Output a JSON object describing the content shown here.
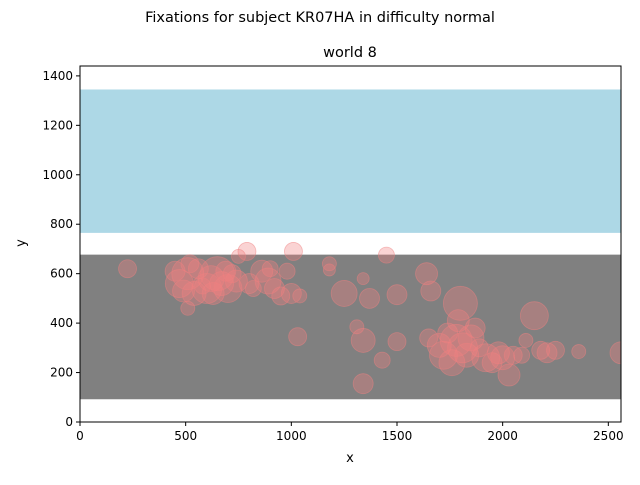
{
  "chart_data": {
    "type": "scatter",
    "suptitle": "Fixations for subject KR07HA in difficulty normal",
    "title": "world 8",
    "xlabel": "x",
    "ylabel": "y",
    "xlim": [
      0,
      2560
    ],
    "ylim": [
      0,
      1440
    ],
    "xticks": [
      0,
      500,
      1000,
      1500,
      2000,
      2500
    ],
    "yticks": [
      0,
      200,
      400,
      600,
      800,
      1000,
      1200,
      1400
    ],
    "grid": false,
    "legend": "none",
    "regions": [
      {
        "x": [
          0,
          2560
        ],
        "y": [
          765,
          1345
        ],
        "color": "#add8e6"
      },
      {
        "x": [
          0,
          2560
        ],
        "y": [
          92,
          677
        ],
        "color": "#808080"
      }
    ],
    "point_color": "#f08080",
    "point_alpha": 0.35,
    "points": [
      {
        "x": 225,
        "y": 620,
        "s": 9
      },
      {
        "x": 450,
        "y": 610,
        "s": 10
      },
      {
        "x": 470,
        "y": 560,
        "s": 14
      },
      {
        "x": 490,
        "y": 530,
        "s": 11
      },
      {
        "x": 510,
        "y": 600,
        "s": 16
      },
      {
        "x": 520,
        "y": 640,
        "s": 9
      },
      {
        "x": 510,
        "y": 460,
        "s": 7
      },
      {
        "x": 540,
        "y": 520,
        "s": 12
      },
      {
        "x": 560,
        "y": 620,
        "s": 10
      },
      {
        "x": 580,
        "y": 550,
        "s": 8
      },
      {
        "x": 600,
        "y": 540,
        "s": 15
      },
      {
        "x": 620,
        "y": 580,
        "s": 13
      },
      {
        "x": 630,
        "y": 520,
        "s": 11
      },
      {
        "x": 650,
        "y": 600,
        "s": 17
      },
      {
        "x": 670,
        "y": 560,
        "s": 12
      },
      {
        "x": 690,
        "y": 610,
        "s": 10
      },
      {
        "x": 700,
        "y": 540,
        "s": 14
      },
      {
        "x": 720,
        "y": 600,
        "s": 9
      },
      {
        "x": 740,
        "y": 570,
        "s": 11
      },
      {
        "x": 750,
        "y": 670,
        "s": 7
      },
      {
        "x": 790,
        "y": 690,
        "s": 9
      },
      {
        "x": 800,
        "y": 560,
        "s": 10
      },
      {
        "x": 820,
        "y": 540,
        "s": 8
      },
      {
        "x": 860,
        "y": 610,
        "s": 11
      },
      {
        "x": 890,
        "y": 570,
        "s": 13
      },
      {
        "x": 900,
        "y": 620,
        "s": 8
      },
      {
        "x": 920,
        "y": 540,
        "s": 10
      },
      {
        "x": 950,
        "y": 510,
        "s": 9
      },
      {
        "x": 980,
        "y": 610,
        "s": 8
      },
      {
        "x": 1010,
        "y": 690,
        "s": 9
      },
      {
        "x": 1000,
        "y": 520,
        "s": 10
      },
      {
        "x": 1040,
        "y": 510,
        "s": 7
      },
      {
        "x": 1030,
        "y": 345,
        "s": 9
      },
      {
        "x": 1180,
        "y": 640,
        "s": 7
      },
      {
        "x": 1180,
        "y": 615,
        "s": 6
      },
      {
        "x": 1250,
        "y": 520,
        "s": 13
      },
      {
        "x": 1310,
        "y": 385,
        "s": 7
      },
      {
        "x": 1340,
        "y": 580,
        "s": 6
      },
      {
        "x": 1340,
        "y": 330,
        "s": 12
      },
      {
        "x": 1340,
        "y": 155,
        "s": 10
      },
      {
        "x": 1370,
        "y": 500,
        "s": 10
      },
      {
        "x": 1430,
        "y": 250,
        "s": 8
      },
      {
        "x": 1450,
        "y": 675,
        "s": 8
      },
      {
        "x": 1500,
        "y": 515,
        "s": 10
      },
      {
        "x": 1500,
        "y": 325,
        "s": 9
      },
      {
        "x": 1640,
        "y": 600,
        "s": 11
      },
      {
        "x": 1660,
        "y": 530,
        "s": 10
      },
      {
        "x": 1650,
        "y": 340,
        "s": 9
      },
      {
        "x": 1700,
        "y": 310,
        "s": 12
      },
      {
        "x": 1720,
        "y": 270,
        "s": 14
      },
      {
        "x": 1740,
        "y": 360,
        "s": 10
      },
      {
        "x": 1760,
        "y": 240,
        "s": 13
      },
      {
        "x": 1780,
        "y": 330,
        "s": 16
      },
      {
        "x": 1790,
        "y": 410,
        "s": 11
      },
      {
        "x": 1800,
        "y": 480,
        "s": 17
      },
      {
        "x": 1810,
        "y": 300,
        "s": 15
      },
      {
        "x": 1830,
        "y": 270,
        "s": 12
      },
      {
        "x": 1850,
        "y": 340,
        "s": 13
      },
      {
        "x": 1870,
        "y": 380,
        "s": 10
      },
      {
        "x": 1890,
        "y": 300,
        "s": 9
      },
      {
        "x": 1920,
        "y": 260,
        "s": 14
      },
      {
        "x": 1950,
        "y": 240,
        "s": 10
      },
      {
        "x": 1980,
        "y": 280,
        "s": 11
      },
      {
        "x": 2000,
        "y": 260,
        "s": 12
      },
      {
        "x": 2030,
        "y": 190,
        "s": 11
      },
      {
        "x": 2050,
        "y": 270,
        "s": 9
      },
      {
        "x": 2090,
        "y": 270,
        "s": 8
      },
      {
        "x": 2110,
        "y": 330,
        "s": 7
      },
      {
        "x": 2150,
        "y": 430,
        "s": 14
      },
      {
        "x": 2180,
        "y": 290,
        "s": 9
      },
      {
        "x": 2210,
        "y": 280,
        "s": 10
      },
      {
        "x": 2250,
        "y": 290,
        "s": 9
      },
      {
        "x": 2360,
        "y": 285,
        "s": 7
      },
      {
        "x": 2560,
        "y": 280,
        "s": 11
      }
    ]
  }
}
